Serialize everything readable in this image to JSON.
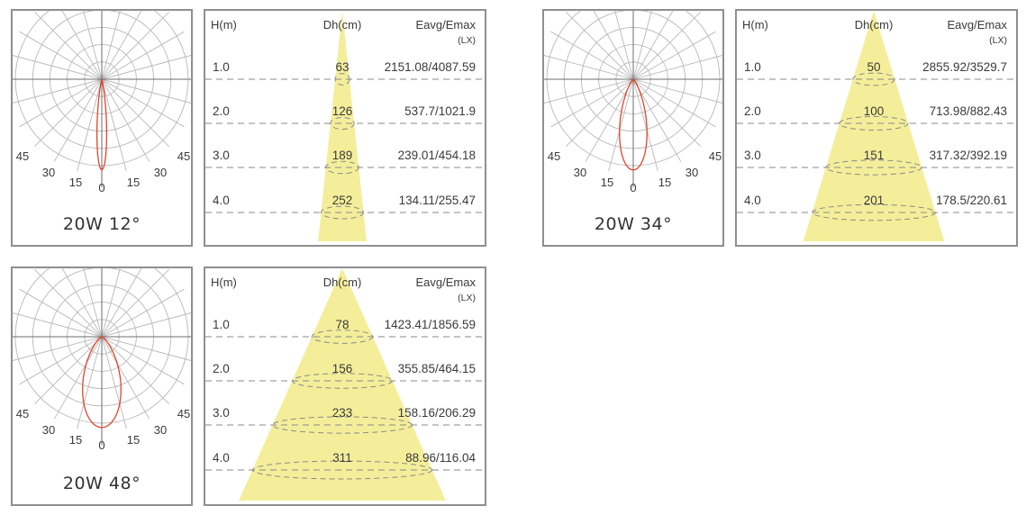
{
  "units": {
    "height_header": "H(m)",
    "diameter_header": "Dh(cm)",
    "illum_header": "Eavg/Emax",
    "illum_unit": "(LX)"
  },
  "polar_angle_labels": [
    "45",
    "30",
    "15",
    "0",
    "15",
    "30",
    "45"
  ],
  "colors": {
    "beam_fill": "#f4ee9a",
    "curve": "#e0452a",
    "grid": "#b8b8b8",
    "dashed": "#8a8a8a",
    "border": "#8f8f8f"
  },
  "lamps": [
    {
      "id": "12",
      "title": "20W 12°",
      "beam_angle_deg": 12,
      "rows": [
        {
          "h": "1.0",
          "dh": "63",
          "e": "2151.08/4087.59"
        },
        {
          "h": "2.0",
          "dh": "126",
          "e": "537.7/1021.9"
        },
        {
          "h": "3.0",
          "dh": "189",
          "e": "239.01/454.18"
        },
        {
          "h": "4.0",
          "dh": "252",
          "e": "134.11/255.47"
        }
      ]
    },
    {
      "id": "34",
      "title": "20W 34°",
      "beam_angle_deg": 34,
      "rows": [
        {
          "h": "1.0",
          "dh": "50",
          "e": "2855.92/3529.7"
        },
        {
          "h": "2.0",
          "dh": "100",
          "e": "713.98/882.43"
        },
        {
          "h": "3.0",
          "dh": "151",
          "e": "317.32/392.19"
        },
        {
          "h": "4.0",
          "dh": "201",
          "e": "178.5/220.61"
        }
      ]
    },
    {
      "id": "48",
      "title": "20W 48°",
      "beam_angle_deg": 48,
      "rows": [
        {
          "h": "1.0",
          "dh": "78",
          "e": "1423.41/1856.59"
        },
        {
          "h": "2.0",
          "dh": "156",
          "e": "355.85/464.15"
        },
        {
          "h": "3.0",
          "dh": "233",
          "e": "158.16/206.29"
        },
        {
          "h": "4.0",
          "dh": "311",
          "e": "88.96/116.04"
        }
      ]
    }
  ]
}
